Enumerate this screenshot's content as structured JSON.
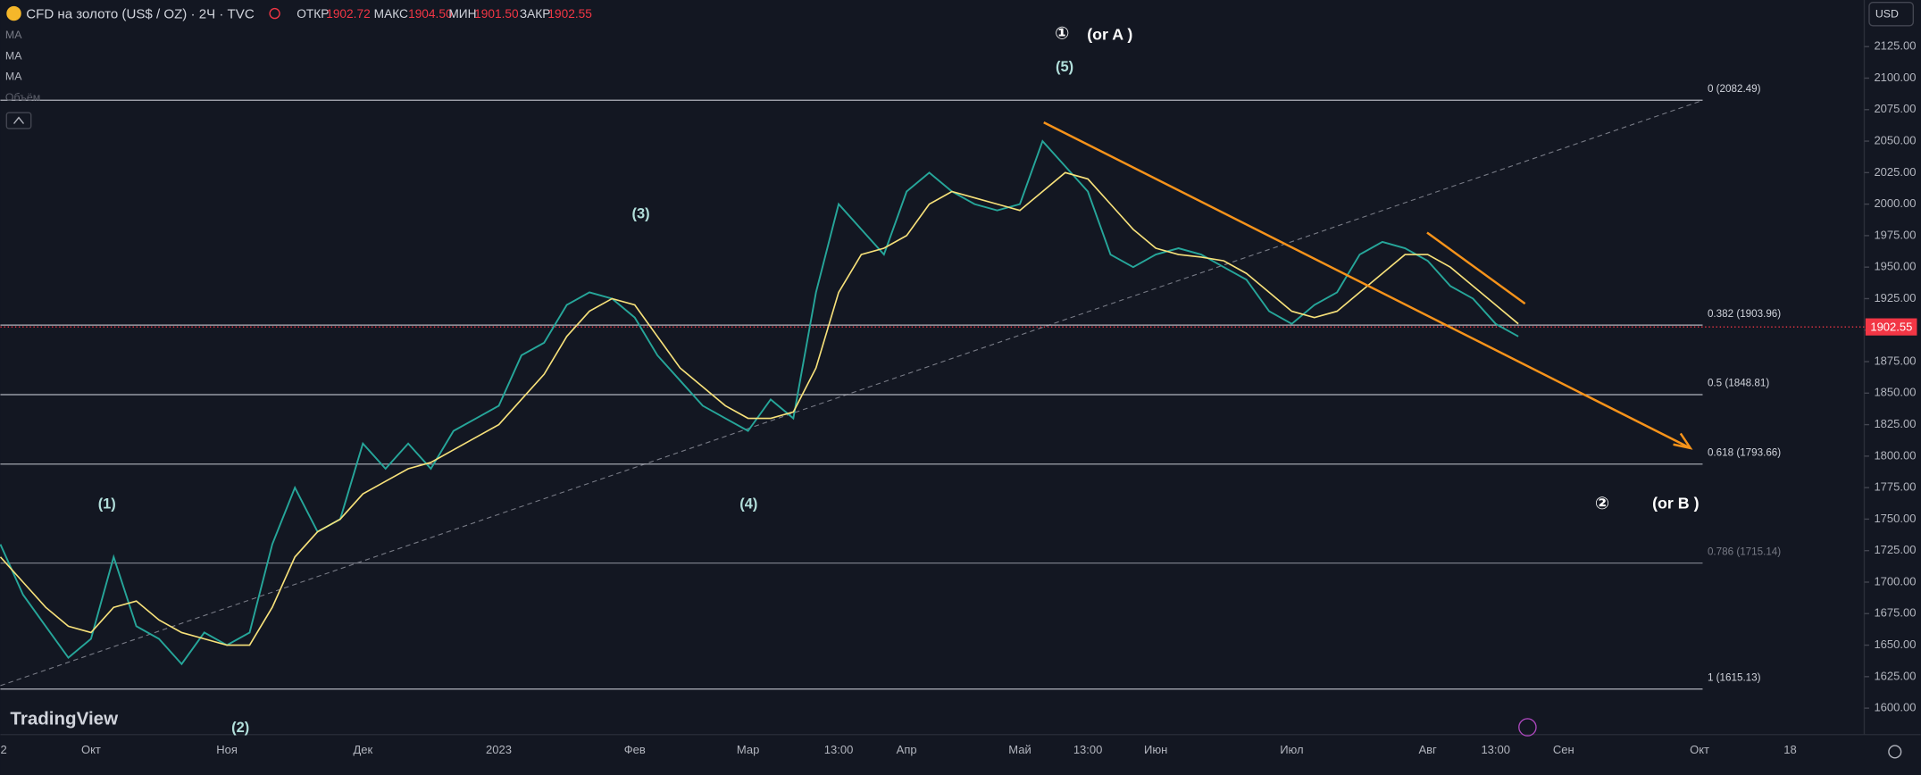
{
  "header": {
    "title": "CFD на золото (US$ / OZ) · 2Ч · TVC",
    "open_label": "ОТКР",
    "open": "1902.72",
    "high_label": "МАКС",
    "high": "1904.50",
    "low_label": "МИН",
    "low": "1901.50",
    "close_label": "ЗАКР",
    "close": "1902.55",
    "indicators": [
      "MA",
      "MA",
      "Объём"
    ],
    "currency": "USD",
    "logo": "TradingView"
  },
  "chart_data": {
    "type": "line",
    "categories": [
      "2",
      null,
      null,
      null,
      "Окт",
      null,
      null,
      null,
      null,
      null,
      "Ноя",
      null,
      null,
      null,
      null,
      null,
      "Дек",
      null,
      null,
      null,
      null,
      null,
      "2023",
      null,
      null,
      null,
      null,
      null,
      "Фев",
      null,
      null,
      null,
      null,
      "Мар",
      null,
      null,
      null,
      "13:00",
      null,
      null,
      "Апр",
      null,
      null,
      null,
      null,
      "Май",
      null,
      null,
      "13:00",
      null,
      null,
      "Июн",
      null,
      null,
      null,
      null,
      null,
      "Июл",
      null,
      null,
      null,
      null,
      null,
      "Авг",
      null,
      null,
      "13:00",
      null,
      null,
      "Сен",
      null,
      null,
      null,
      null,
      null,
      "Окт",
      null,
      null,
      null,
      "18",
      null,
      null
    ],
    "series": [
      {
        "name": "MA",
        "color": "#26a69a",
        "values": [
          1730,
          1690,
          1665,
          1640,
          1655,
          1720,
          1665,
          1655,
          1635,
          1660,
          1650,
          1660,
          1730,
          1775,
          1740,
          1750,
          1810,
          1790,
          1810,
          1790,
          1820,
          1830,
          1840,
          1880,
          1890,
          1920,
          1930,
          1925,
          1910,
          1880,
          1860,
          1840,
          1830,
          1820,
          1845,
          1830,
          1930,
          2000,
          1980,
          1960,
          2010,
          2025,
          2010,
          2000,
          1995,
          2000,
          2050,
          2030,
          2010,
          1960,
          1950,
          1960,
          1965,
          1960,
          1950,
          1940,
          1915,
          1905,
          1920,
          1930,
          1960,
          1970,
          1965,
          1955,
          1935,
          1925,
          1905,
          1895,
          null,
          null,
          null,
          null,
          null,
          null,
          null,
          null,
          null,
          null,
          null,
          null,
          null,
          null
        ]
      },
      {
        "name": "MA",
        "color": "#f7e17a",
        "values": [
          1720,
          1700,
          1680,
          1665,
          1660,
          1680,
          1685,
          1670,
          1660,
          1655,
          1650,
          1650,
          1680,
          1720,
          1740,
          1750,
          1770,
          1780,
          1790,
          1795,
          1805,
          1815,
          1825,
          1845,
          1865,
          1895,
          1915,
          1925,
          1920,
          1895,
          1870,
          1855,
          1840,
          1830,
          1830,
          1835,
          1870,
          1930,
          1960,
          1965,
          1975,
          2000,
          2010,
          2005,
          2000,
          1995,
          2010,
          2025,
          2020,
          2000,
          1980,
          1965,
          1960,
          1958,
          1955,
          1945,
          1930,
          1915,
          1910,
          1915,
          1930,
          1945,
          1960,
          1960,
          1950,
          1935,
          1920,
          1905,
          null,
          null,
          null,
          null,
          null,
          null,
          null,
          null,
          null,
          null,
          null,
          null,
          null,
          null
        ]
      }
    ],
    "ylim": [
      1579,
      2162
    ],
    "yticks": [
      {
        "value": 1600,
        "label": "1600.00"
      },
      {
        "value": 1625,
        "label": "1625.00"
      },
      {
        "value": 1650,
        "label": "1650.00"
      },
      {
        "value": 1675,
        "label": "1675.00"
      },
      {
        "value": 1700,
        "label": "1700.00"
      },
      {
        "value": 1725,
        "label": "1725.00"
      },
      {
        "value": 1750,
        "label": "1750.00"
      },
      {
        "value": 1775,
        "label": "1775.00"
      },
      {
        "value": 1800,
        "label": "1800.00"
      },
      {
        "value": 1825,
        "label": "1825.00"
      },
      {
        "value": 1850,
        "label": "1850.00"
      },
      {
        "value": 1875,
        "label": "1875.00"
      },
      {
        "value": 1900,
        "label": "1900.00"
      },
      {
        "value": 1925,
        "label": "1925.00"
      },
      {
        "value": 1950,
        "label": "1950.00"
      },
      {
        "value": 1975,
        "label": "1975.00"
      },
      {
        "value": 2000,
        "label": "2000.00"
      },
      {
        "value": 2025,
        "label": "2025.00"
      },
      {
        "value": 2050,
        "label": "2050.00"
      },
      {
        "value": 2075,
        "label": "2075.00"
      },
      {
        "value": 2100,
        "label": "2100.00"
      },
      {
        "value": 2125,
        "label": "2125.00"
      }
    ],
    "fib_levels": [
      {
        "value": 2082.49,
        "label": "0 (2082.49)"
      },
      {
        "value": 1903.96,
        "label": "0.382 (1903.96)"
      },
      {
        "value": 1848.81,
        "label": "0.5 (1848.81)"
      },
      {
        "value": 1793.66,
        "label": "0.618 (1793.66)"
      },
      {
        "value": 1715.14,
        "label": "0.786 (1715.14)"
      },
      {
        "value": 1615.13,
        "label": "1 (1615.13)"
      }
    ],
    "last_price": {
      "value": 1902.55,
      "label": "1902.55"
    },
    "annotations": [
      "①",
      "(or A )",
      "(5)",
      "(3)",
      "(1)",
      "(4)",
      "(2)",
      "②",
      "(or B )"
    ]
  }
}
